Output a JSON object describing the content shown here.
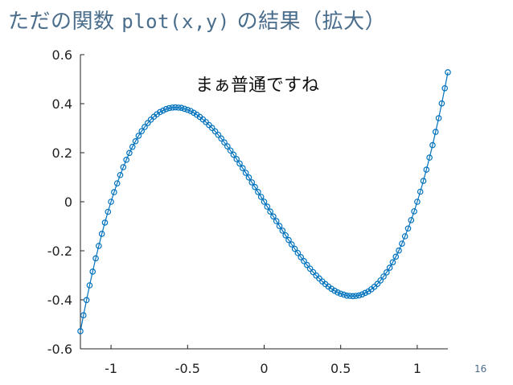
{
  "slide": {
    "title_prefix": "ただの関数 ",
    "title_code": "plot(x,y)",
    "title_suffix": " の結果（拡大）",
    "page_number": "16"
  },
  "chart_data": {
    "type": "line",
    "title": "",
    "xlabel": "",
    "ylabel": "",
    "xlim": [
      -1.2,
      1.2
    ],
    "ylim": [
      -0.6,
      0.6
    ],
    "xticks": [
      -1,
      -0.5,
      0,
      0.5,
      1
    ],
    "xtick_labels": [
      "-1",
      "-0.5",
      "0",
      "0.5",
      "1"
    ],
    "yticks": [
      -0.6,
      -0.4,
      -0.2,
      0,
      0.2,
      0.4,
      0.6
    ],
    "ytick_labels": [
      "-0.6",
      "-0.4",
      "-0.2",
      "0",
      "0.2",
      "0.4",
      "0.6"
    ],
    "grid": false,
    "annotation": "まぁ普通ですね",
    "series": [
      {
        "marker": "circle",
        "color": "#0072bd",
        "x": [
          -1.2,
          -1.18,
          -1.16,
          -1.14,
          -1.12,
          -1.1,
          -1.08,
          -1.06,
          -1.04,
          -1.02,
          -1.0,
          -0.98,
          -0.96,
          -0.94,
          -0.92,
          -0.9,
          -0.88,
          -0.86,
          -0.84,
          -0.82,
          -0.8,
          -0.78,
          -0.76,
          -0.74,
          -0.72,
          -0.7,
          -0.68,
          -0.66,
          -0.64,
          -0.62,
          -0.6,
          -0.58,
          -0.56,
          -0.54,
          -0.52,
          -0.5,
          -0.48,
          -0.46,
          -0.44,
          -0.42,
          -0.4,
          -0.38,
          -0.36,
          -0.34,
          -0.32,
          -0.3,
          -0.28,
          -0.26,
          -0.24,
          -0.22,
          -0.2,
          -0.18,
          -0.16,
          -0.14,
          -0.12,
          -0.1,
          -0.08,
          -0.06,
          -0.04,
          -0.02,
          0.0,
          0.02,
          0.04,
          0.06,
          0.08,
          0.1,
          0.12,
          0.14,
          0.16,
          0.18,
          0.2,
          0.22,
          0.24,
          0.26,
          0.28,
          0.3,
          0.32,
          0.34,
          0.36,
          0.38,
          0.4,
          0.42,
          0.44,
          0.46,
          0.48,
          0.5,
          0.52,
          0.54,
          0.56,
          0.58,
          0.6,
          0.62,
          0.64,
          0.66,
          0.68,
          0.7,
          0.72,
          0.74,
          0.76,
          0.78,
          0.8,
          0.82,
          0.84,
          0.86,
          0.88,
          0.9,
          0.92,
          0.94,
          0.96,
          0.98,
          1.0,
          1.02,
          1.04,
          1.06,
          1.08,
          1.1,
          1.12,
          1.14,
          1.16,
          1.18,
          1.2
        ],
        "y": [
          -0.528,
          -0.463,
          -0.401,
          -0.341,
          -0.285,
          -0.231,
          -0.18,
          -0.131,
          -0.085,
          -0.041,
          0.0,
          0.039,
          0.075,
          0.109,
          0.141,
          0.171,
          0.199,
          0.224,
          0.247,
          0.269,
          0.288,
          0.305,
          0.321,
          0.335,
          0.347,
          0.357,
          0.366,
          0.372,
          0.378,
          0.382,
          0.384,
          0.385,
          0.384,
          0.383,
          0.379,
          0.375,
          0.37,
          0.363,
          0.355,
          0.346,
          0.336,
          0.325,
          0.313,
          0.301,
          0.287,
          0.273,
          0.258,
          0.242,
          0.226,
          0.209,
          0.192,
          0.174,
          0.156,
          0.137,
          0.118,
          0.099,
          0.079,
          0.06,
          0.04,
          0.02,
          0.0,
          -0.02,
          -0.04,
          -0.06,
          -0.079,
          -0.099,
          -0.118,
          -0.137,
          -0.156,
          -0.174,
          -0.192,
          -0.209,
          -0.226,
          -0.242,
          -0.258,
          -0.273,
          -0.287,
          -0.301,
          -0.313,
          -0.325,
          -0.336,
          -0.346,
          -0.355,
          -0.363,
          -0.37,
          -0.375,
          -0.379,
          -0.383,
          -0.384,
          -0.385,
          -0.384,
          -0.382,
          -0.378,
          -0.372,
          -0.366,
          -0.357,
          -0.347,
          -0.335,
          -0.321,
          -0.305,
          -0.288,
          -0.269,
          -0.247,
          -0.224,
          -0.199,
          -0.171,
          -0.141,
          -0.109,
          -0.075,
          -0.039,
          0.0,
          0.041,
          0.085,
          0.131,
          0.18,
          0.231,
          0.285,
          0.341,
          0.401,
          0.463,
          0.528
        ]
      }
    ]
  }
}
